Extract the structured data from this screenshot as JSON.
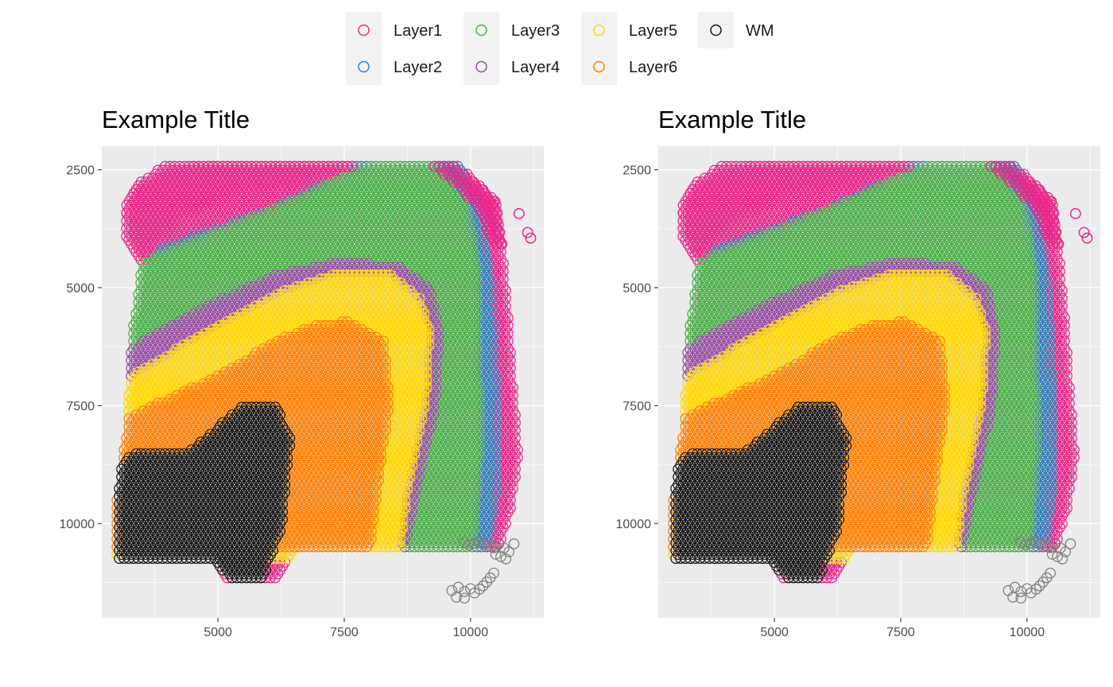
{
  "legend": {
    "position": "top",
    "items": [
      {
        "label": "Layer1",
        "color": "#e7298a"
      },
      {
        "label": "Layer2",
        "color": "#377eb8"
      },
      {
        "label": "Layer3",
        "color": "#4daf4a"
      },
      {
        "label": "Layer4",
        "color": "#984ea3"
      },
      {
        "label": "Layer5",
        "color": "#ffd700"
      },
      {
        "label": "Layer6",
        "color": "#ff7f00"
      },
      {
        "label": "WM",
        "color": "#1a1a1a"
      }
    ],
    "na_color": "#808080"
  },
  "chart_data": [
    {
      "type": "scatter",
      "title": "Example Title",
      "xlabel": "",
      "ylabel": "",
      "xlim": [
        2700,
        11450
      ],
      "ylim": [
        12000,
        2000
      ],
      "y_reversed": true,
      "x_ticks": [
        5000,
        7500,
        10000
      ],
      "x_tick_labels": [
        "5000",
        "7500",
        "10000"
      ],
      "y_ticks": [
        2500,
        5000,
        7500,
        10000
      ],
      "y_tick_labels": [
        "2500",
        "5000",
        "7500",
        "10000"
      ],
      "grid": true,
      "marker": "open-circle",
      "spot_spacing": 95,
      "series": [
        {
          "name": "Layer1",
          "color": "#e7298a"
        },
        {
          "name": "Layer2",
          "color": "#377eb8"
        },
        {
          "name": "Layer3",
          "color": "#4daf4a"
        },
        {
          "name": "Layer4",
          "color": "#984ea3"
        },
        {
          "name": "Layer5",
          "color": "#ffd700"
        },
        {
          "name": "Layer6",
          "color": "#ff7f00"
        },
        {
          "name": "WM",
          "color": "#1a1a1a"
        }
      ],
      "na_points": [
        [
          9870,
          10400
        ],
        [
          9960,
          10450
        ],
        [
          10060,
          10420
        ],
        [
          10160,
          10380
        ],
        [
          10260,
          10430
        ],
        [
          10360,
          10470
        ],
        [
          10460,
          10510
        ],
        [
          10560,
          10430
        ],
        [
          10660,
          10520
        ],
        [
          10760,
          10600
        ],
        [
          10860,
          10430
        ],
        [
          10500,
          10650
        ],
        [
          10600,
          10700
        ],
        [
          10700,
          10750
        ],
        [
          10460,
          11050
        ],
        [
          10390,
          11150
        ],
        [
          10320,
          11240
        ],
        [
          10250,
          11320
        ],
        [
          10180,
          11390
        ],
        [
          10000,
          11380
        ],
        [
          9880,
          11440
        ],
        [
          9760,
          11350
        ],
        [
          9630,
          11420
        ],
        [
          9720,
          11560
        ],
        [
          9880,
          11580
        ],
        [
          10080,
          11470
        ]
      ],
      "outlier_points": [
        [
          10960,
          3430
        ],
        [
          11130,
          3830
        ],
        [
          11190,
          3950
        ]
      ]
    },
    {
      "type": "scatter",
      "title": "Example Title",
      "xlabel": "",
      "ylabel": "",
      "xlim": [
        2700,
        11450
      ],
      "ylim": [
        12000,
        2000
      ],
      "y_reversed": true,
      "x_ticks": [
        5000,
        7500,
        10000
      ],
      "x_tick_labels": [
        "5000",
        "7500",
        "10000"
      ],
      "y_ticks": [
        2500,
        5000,
        7500,
        10000
      ],
      "y_tick_labels": [
        "2500",
        "5000",
        "7500",
        "10000"
      ],
      "grid": true,
      "marker": "open-circle",
      "spot_spacing": 95,
      "series": [
        {
          "name": "Layer1",
          "color": "#e7298a"
        },
        {
          "name": "Layer2",
          "color": "#377eb8"
        },
        {
          "name": "Layer3",
          "color": "#4daf4a"
        },
        {
          "name": "Layer4",
          "color": "#984ea3"
        },
        {
          "name": "Layer5",
          "color": "#ffd700"
        },
        {
          "name": "Layer6",
          "color": "#ff7f00"
        },
        {
          "name": "WM",
          "color": "#1a1a1a"
        }
      ],
      "na_points": [
        [
          9870,
          10400
        ],
        [
          9960,
          10450
        ],
        [
          10060,
          10420
        ],
        [
          10160,
          10380
        ],
        [
          10260,
          10430
        ],
        [
          10360,
          10470
        ],
        [
          10460,
          10510
        ],
        [
          10560,
          10430
        ],
        [
          10660,
          10520
        ],
        [
          10760,
          10600
        ],
        [
          10860,
          10430
        ],
        [
          10500,
          10650
        ],
        [
          10600,
          10700
        ],
        [
          10700,
          10750
        ],
        [
          10460,
          11050
        ],
        [
          10390,
          11150
        ],
        [
          10320,
          11240
        ],
        [
          10250,
          11320
        ],
        [
          10180,
          11390
        ],
        [
          10000,
          11380
        ],
        [
          9880,
          11440
        ],
        [
          9760,
          11350
        ],
        [
          9630,
          11420
        ],
        [
          9720,
          11560
        ],
        [
          9880,
          11580
        ],
        [
          10080,
          11470
        ]
      ],
      "outlier_points": [
        [
          10960,
          3430
        ],
        [
          11130,
          3830
        ],
        [
          11190,
          3950
        ]
      ]
    }
  ]
}
